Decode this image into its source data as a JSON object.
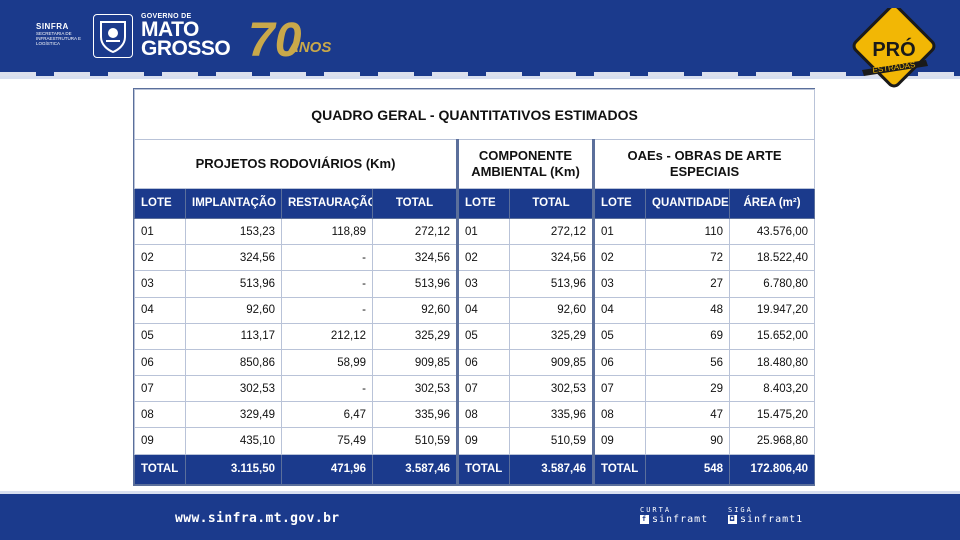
{
  "header": {
    "sinfra_name": "SINFRA",
    "sinfra_desc": "SECRETARIA DE INFRAESTRUTURA E LOGÍSTICA",
    "gov_line1": "GOVERNO DE",
    "gov_line2": "MATO",
    "gov_line3": "GROSSO",
    "anos_number": "70",
    "anos_label": "ANOS",
    "pro_label": "PRÓ",
    "pro_sub": "ESTRADAS"
  },
  "table": {
    "title": "QUADRO GERAL - QUANTITATIVOS ESTIMADOS",
    "groups": {
      "rodoviarios": "PROJETOS RODOVIÁRIOS (Km)",
      "ambiental": "COMPONENTE AMBIENTAL (Km)",
      "oaes": "OAEs - OBRAS DE ARTE ESPECIAIS"
    },
    "columns": [
      "LOTE",
      "IMPLANTAÇÃO",
      "RESTAURAÇÃO",
      "TOTAL",
      "LOTE",
      "TOTAL",
      "LOTE",
      "QUANTIDADE",
      "ÁREA (m²)"
    ],
    "rows": [
      [
        "01",
        "153,23",
        "118,89",
        "272,12",
        "01",
        "272,12",
        "01",
        "110",
        "43.576,00"
      ],
      [
        "02",
        "324,56",
        "-",
        "324,56",
        "02",
        "324,56",
        "02",
        "72",
        "18.522,40"
      ],
      [
        "03",
        "513,96",
        "-",
        "513,96",
        "03",
        "513,96",
        "03",
        "27",
        "6.780,80"
      ],
      [
        "04",
        "92,60",
        "-",
        "92,60",
        "04",
        "92,60",
        "04",
        "48",
        "19.947,20"
      ],
      [
        "05",
        "113,17",
        "212,12",
        "325,29",
        "05",
        "325,29",
        "05",
        "69",
        "15.652,00"
      ],
      [
        "06",
        "850,86",
        "58,99",
        "909,85",
        "06",
        "909,85",
        "06",
        "56",
        "18.480,80"
      ],
      [
        "07",
        "302,53",
        "-",
        "302,53",
        "07",
        "302,53",
        "07",
        "29",
        "8.403,20"
      ],
      [
        "08",
        "329,49",
        "6,47",
        "335,96",
        "08",
        "335,96",
        "08",
        "47",
        "15.475,20"
      ],
      [
        "09",
        "435,10",
        "75,49",
        "510,59",
        "09",
        "510,59",
        "09",
        "90",
        "25.968,80"
      ]
    ],
    "total": [
      "TOTAL",
      "3.115,50",
      "471,96",
      "3.587,46",
      "TOTAL",
      "3.587,46",
      "TOTAL",
      "548",
      "172.806,40"
    ]
  },
  "footer": {
    "website": "www.sinfra.mt.gov.br",
    "curta_label": "CURTA",
    "curta_handle": "sinframt",
    "siga_label": "SIGA",
    "siga_handle": "sinframt1"
  },
  "colors": {
    "brand_blue": "#1b3a8c",
    "pro_yellow": "#f2b705"
  }
}
